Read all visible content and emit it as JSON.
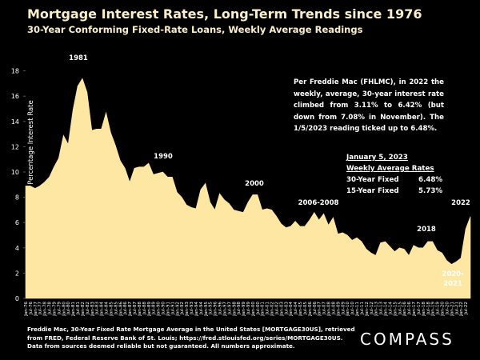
{
  "chart_data": {
    "type": "area",
    "title": "Mortgage Interest Rates, Long-Term Trends since 1976",
    "subtitle": "30-Year Conforming Fixed-Rate Loans, Weekly Average Readings",
    "y_label": "Percentage Interest  Rate",
    "color": "#fde7a3",
    "categories": [
      "Jan-76",
      "Jul-76",
      "Jan-77",
      "Jul-77",
      "Jan-78",
      "Jul-78",
      "Jan-79",
      "Jul-79",
      "Jan-80",
      "Jul-80",
      "Jan-81",
      "Jul-81",
      "Jan-82",
      "Jul-82",
      "Jan-83",
      "Jul-83",
      "Jan-84",
      "Jul-84",
      "Jan-85",
      "Jul-85",
      "Jan-86",
      "Jul-86",
      "Jan-87",
      "Jul-87",
      "Jan-88",
      "Jul-88",
      "Jan-89",
      "Jul-89",
      "Jan-90",
      "Jul-90",
      "Jan-91",
      "Jul-91",
      "Jan-92",
      "Jul-92",
      "Jan-93",
      "Jul-93",
      "Jan-94",
      "Jul-94",
      "Jan-95",
      "Jul-95",
      "Jan-96",
      "Jul-96",
      "Jan-97",
      "Jul-97",
      "Jan-98",
      "Jul-98",
      "Jan-99",
      "Jul-99",
      "Jan-00",
      "Jul-00",
      "Jan-01",
      "Jul-01",
      "Jan-02",
      "Jul-02",
      "Jan-03",
      "Jul-03",
      "Jan-04",
      "Jul-04",
      "Jan-05",
      "Jul-05",
      "Jan-06",
      "Jul-06",
      "Jan-07",
      "Jul-07",
      "Jan-08",
      "Jul-08",
      "Jan-09",
      "Jul-09",
      "Jan-10",
      "Jul-10",
      "Jan-11",
      "Jul-11",
      "Jan-12",
      "Jul-12",
      "Jan-13",
      "Jul-13",
      "Jan-14",
      "Jul-14",
      "Jan-15",
      "Jul-15",
      "Jan-16",
      "Jul-16",
      "Jan-17",
      "Jul-17",
      "Jan-18",
      "Jul-18",
      "Jan-19",
      "Jul-19",
      "Jan-20",
      "Jul-20",
      "Jan-21",
      "Jul-21",
      "Jan-22",
      "Jul-22",
      null
    ],
    "values": [
      8.9,
      8.9,
      8.7,
      8.9,
      9.2,
      9.6,
      10.4,
      11.1,
      12.9,
      12.2,
      14.9,
      16.8,
      17.4,
      16.3,
      13.3,
      13.4,
      13.4,
      14.7,
      13.1,
      12.1,
      10.9,
      10.3,
      9.2,
      10.3,
      10.4,
      10.4,
      10.7,
      9.8,
      9.9,
      10.0,
      9.6,
      9.6,
      8.4,
      8.0,
      7.4,
      7.2,
      7.1,
      8.6,
      9.1,
      7.6,
      7.0,
      8.3,
      7.8,
      7.5,
      7.0,
      6.9,
      6.8,
      7.6,
      8.2,
      8.2,
      7.0,
      7.1,
      7.0,
      6.5,
      5.9,
      5.6,
      5.7,
      6.1,
      5.7,
      5.7,
      6.2,
      6.8,
      6.2,
      6.7,
      5.8,
      6.4,
      5.1,
      5.2,
      5.0,
      4.6,
      4.8,
      4.5,
      3.9,
      3.6,
      3.4,
      4.4,
      4.5,
      4.1,
      3.7,
      4.0,
      3.9,
      3.4,
      4.2,
      4.0,
      4.0,
      4.5,
      4.5,
      3.8,
      3.6,
      3.0,
      2.7,
      2.9,
      3.2,
      5.5,
      6.48
    ],
    "ylim": [
      0,
      20
    ],
    "yticks": [
      0,
      2,
      4,
      6,
      8,
      10,
      12,
      14,
      16,
      18
    ],
    "grid": false,
    "annotations": [
      "1981",
      "1990",
      "2000",
      "2006-2008",
      "2018",
      "2020-\n2021",
      "2022"
    ],
    "note": "Per Freddie Mac (FHLMC), in 2022 the weekly, average, 30-year interest rate climbed from 3.11% to 6.42% (but down from 7.08% in November). The 1/5/2023 reading ticked up to 6.48%.",
    "rates_box": {
      "title": "January 5, 2023",
      "subtitle": "Weekly Average Rates",
      "rows": [
        [
          "30-Year Fixed",
          "6.48%"
        ],
        [
          "15-Year Fixed",
          "5.73%"
        ]
      ]
    },
    "source": "Freddie Mac, 30-Year Fixed Rate Mortgage Average in the United States [MORTGAGE30US], retrieved from FRED, Federal Reserve Bank of St. Louis; https://fred.stlouisfed.org/series/MORTGAGE30US. Data from sources deemed reliable but not guaranteed. All numbers approximate.",
    "logo": "COMPASS"
  }
}
